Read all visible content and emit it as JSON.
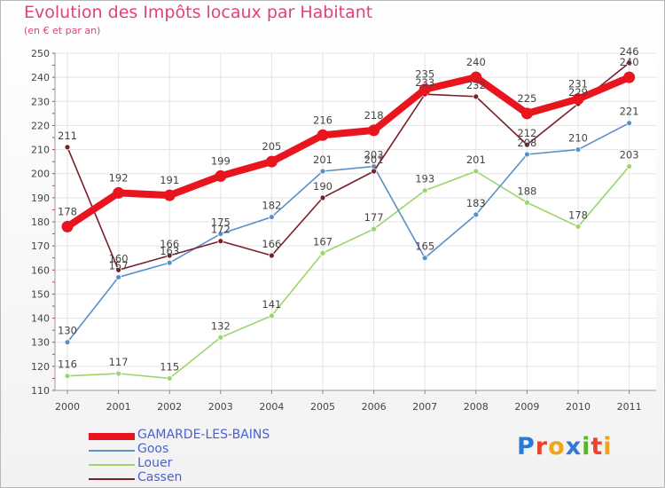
{
  "title": "Evolution des Impôts locaux par Habitant",
  "subtitle": "(en € et par an)",
  "logo": {
    "text": "Proxiti",
    "letters": [
      "P",
      "r",
      "o",
      "x",
      "i",
      "t",
      "i"
    ],
    "colors": [
      "#2b7bd6",
      "#e8452c",
      "#f2a31c",
      "#2b7bd6",
      "#5bb52b",
      "#e8452c",
      "#f2a31c"
    ]
  },
  "chart_data": {
    "type": "line",
    "x": [
      "2000",
      "2001",
      "2002",
      "2003",
      "2004",
      "2005",
      "2006",
      "2007",
      "2008",
      "2009",
      "2010",
      "2011"
    ],
    "ylim": [
      110,
      250
    ],
    "yticks": [
      110,
      120,
      130,
      140,
      150,
      160,
      170,
      180,
      190,
      200,
      210,
      220,
      230,
      240,
      250
    ],
    "grid": true,
    "legend_position": "bottom-left",
    "series": [
      {
        "name": "GAMARDE-LES-BAINS",
        "color": "#e8141e",
        "values": [
          178,
          192,
          191,
          199,
          205,
          216,
          218,
          235,
          240,
          225,
          231,
          240
        ]
      },
      {
        "name": "Goos",
        "color": "#5b8fc9",
        "values": [
          130,
          157,
          163,
          175,
          182,
          201,
          203,
          165,
          183,
          208,
          210,
          221
        ]
      },
      {
        "name": "Louer",
        "color": "#9ad66a",
        "values": [
          116,
          117,
          115,
          132,
          141,
          167,
          177,
          193,
          201,
          188,
          178,
          203
        ]
      },
      {
        "name": "Cassen",
        "color": "#7a1f2a",
        "values": [
          211,
          160,
          166,
          172,
          166,
          190,
          201,
          233,
          232,
          212,
          229,
          246
        ]
      }
    ]
  }
}
